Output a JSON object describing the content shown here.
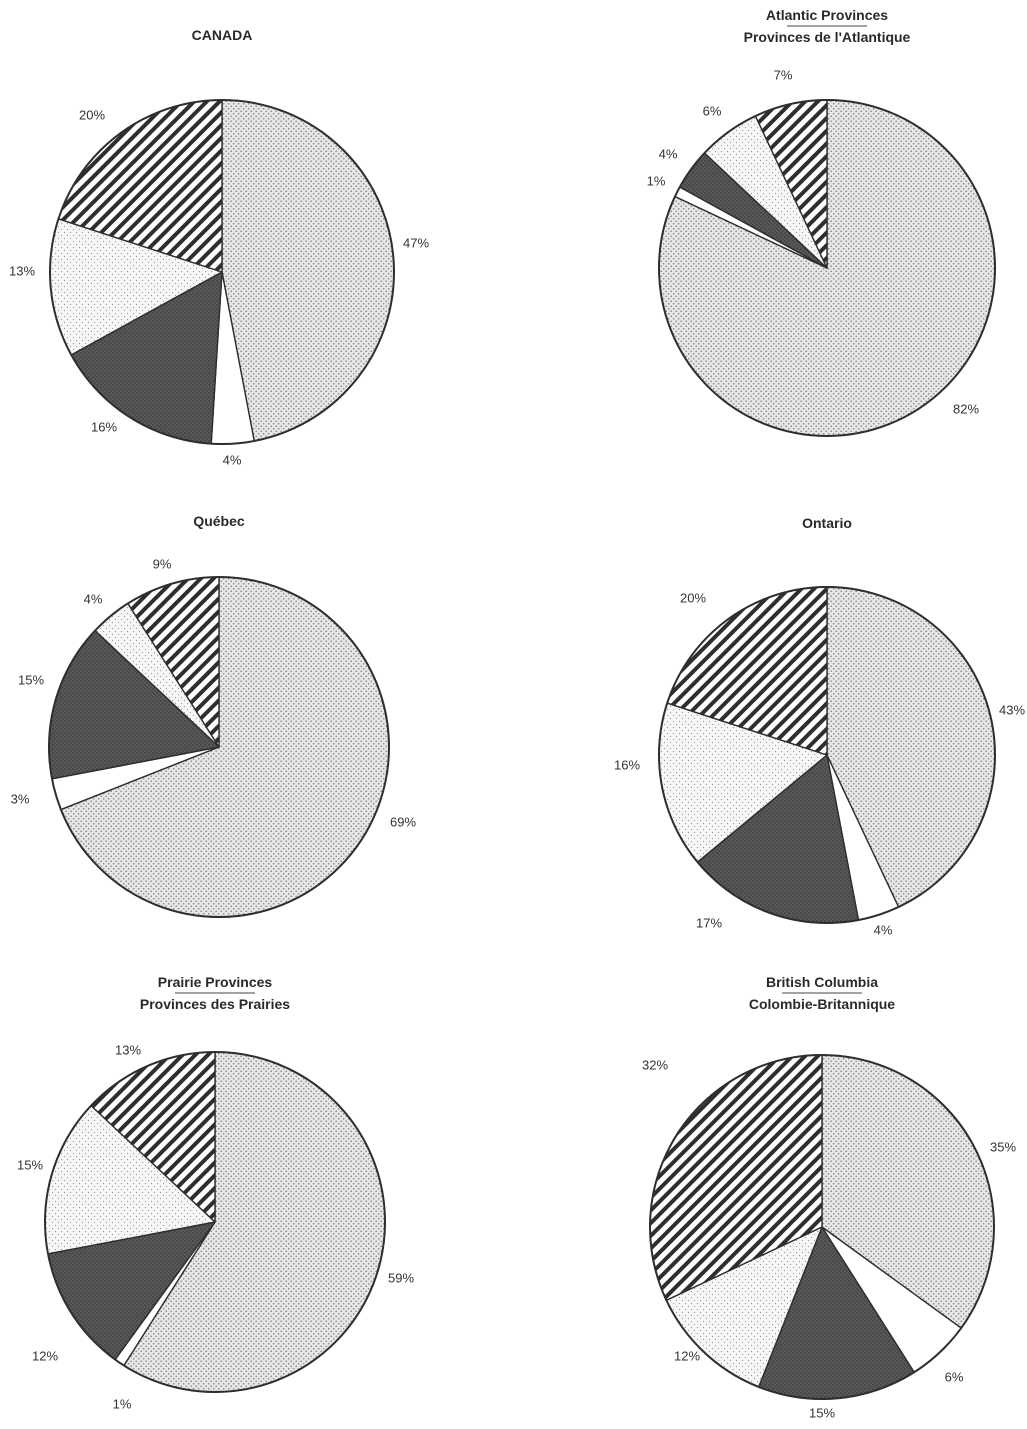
{
  "chart_data": [
    {
      "type": "pie",
      "title": "CANADA",
      "slices": [
        {
          "value": 47,
          "label": "47%",
          "pattern": "dots"
        },
        {
          "value": 4,
          "label": "4%",
          "pattern": "white"
        },
        {
          "value": 16,
          "label": "16%",
          "pattern": "dark"
        },
        {
          "value": 13,
          "label": "13%",
          "pattern": "light"
        },
        {
          "value": 20,
          "label": "20%",
          "pattern": "stripes"
        }
      ]
    },
    {
      "type": "pie",
      "title": "Atlantic Provinces",
      "subtitle": "Provinces de l'Atlantique",
      "slices": [
        {
          "value": 82,
          "label": "82%",
          "pattern": "dots"
        },
        {
          "value": 1,
          "label": "1%",
          "pattern": "white"
        },
        {
          "value": 4,
          "label": "4%",
          "pattern": "dark"
        },
        {
          "value": 6,
          "label": "6%",
          "pattern": "light"
        },
        {
          "value": 7,
          "label": "7%",
          "pattern": "stripes"
        }
      ]
    },
    {
      "type": "pie",
      "title": "Québec",
      "slices": [
        {
          "value": 69,
          "label": "69%",
          "pattern": "dots"
        },
        {
          "value": 3,
          "label": "3%",
          "pattern": "white"
        },
        {
          "value": 15,
          "label": "15%",
          "pattern": "dark"
        },
        {
          "value": 4,
          "label": "4%",
          "pattern": "light"
        },
        {
          "value": 9,
          "label": "9%",
          "pattern": "stripes"
        }
      ]
    },
    {
      "type": "pie",
      "title": "Ontario",
      "slices": [
        {
          "value": 43,
          "label": "43%",
          "pattern": "dots"
        },
        {
          "value": 4,
          "label": "4%",
          "pattern": "white"
        },
        {
          "value": 17,
          "label": "17%",
          "pattern": "dark"
        },
        {
          "value": 16,
          "label": "16%",
          "pattern": "light"
        },
        {
          "value": 20,
          "label": "20%",
          "pattern": "stripes"
        }
      ]
    },
    {
      "type": "pie",
      "title": "Prairie Provinces",
      "subtitle": "Provinces des Prairies",
      "slices": [
        {
          "value": 59,
          "label": "59%",
          "pattern": "dots"
        },
        {
          "value": 1,
          "label": "1%",
          "pattern": "white"
        },
        {
          "value": 12,
          "label": "12%",
          "pattern": "dark"
        },
        {
          "value": 15,
          "label": "15%",
          "pattern": "light"
        },
        {
          "value": 13,
          "label": "13%",
          "pattern": "stripes"
        }
      ]
    },
    {
      "type": "pie",
      "title": "British Columbia",
      "subtitle": "Colombie-Britannique",
      "slices": [
        {
          "value": 35,
          "label": "35%",
          "pattern": "dots"
        },
        {
          "value": 6,
          "label": "6%",
          "pattern": "white"
        },
        {
          "value": 15,
          "label": "15%",
          "pattern": "dark"
        },
        {
          "value": 12,
          "label": "12%",
          "pattern": "light"
        },
        {
          "value": 32,
          "label": "32%",
          "pattern": "stripes"
        }
      ]
    }
  ],
  "colors": {
    "outline": "#2e2e2e",
    "dots_fill": "#e6e6e6",
    "dark_fill": "#4f4f4f",
    "light_fill": "#f4f4f4",
    "white_fill": "#ffffff",
    "stripes_ink": "#2e2e2e"
  }
}
